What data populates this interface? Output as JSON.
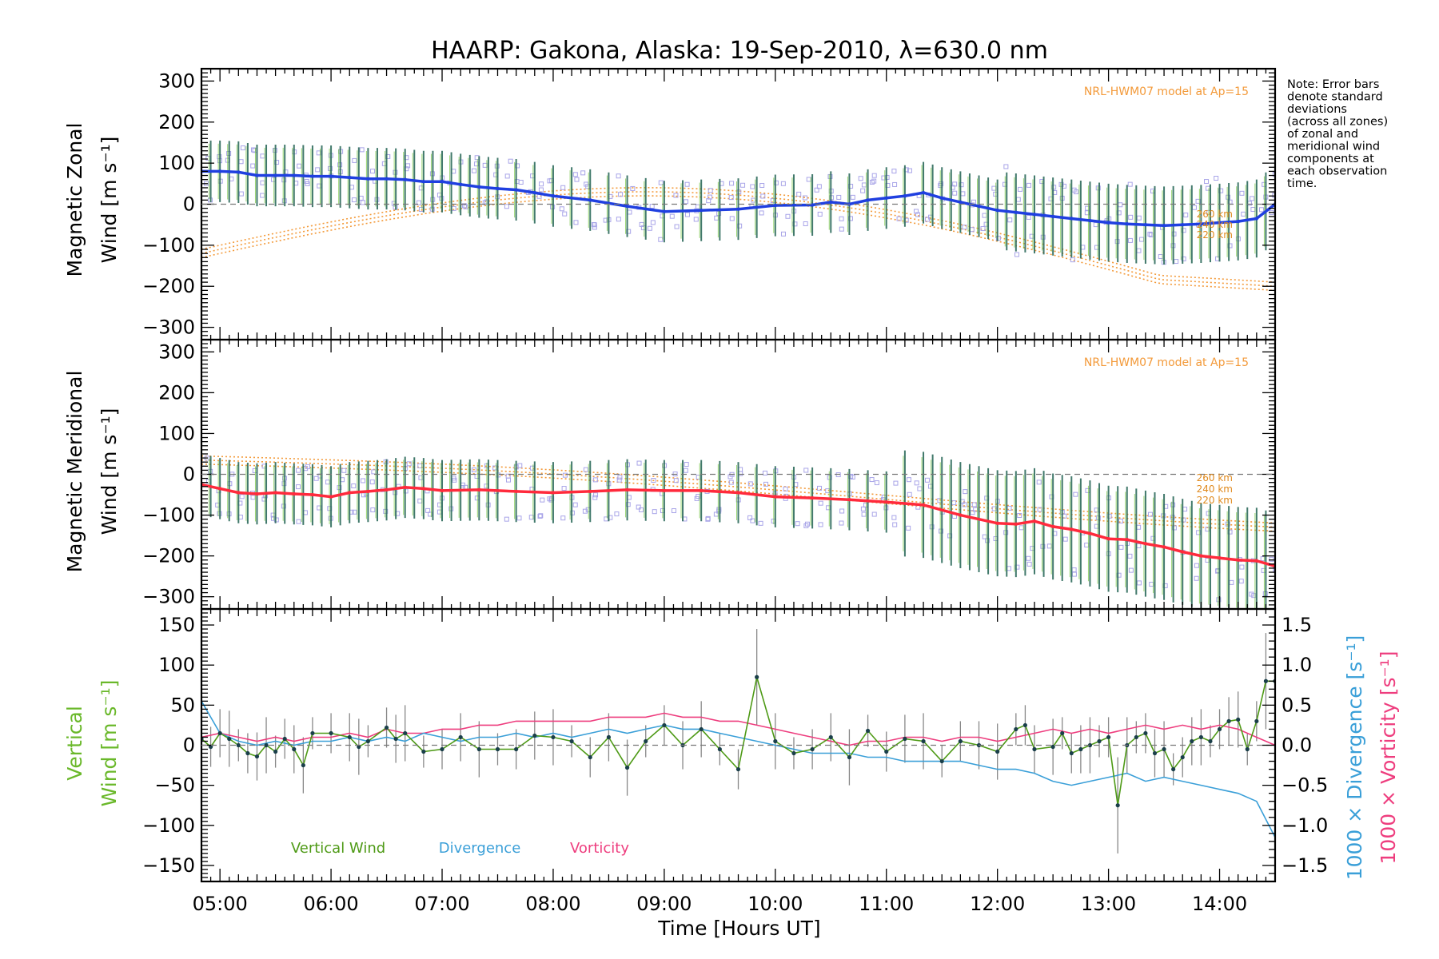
{
  "chart_data": [
    {
      "type": "line",
      "panel": "zonal",
      "title": "HAARP: Gakona,  Alaska: 19-Sep-2010, λ=630.0 nm",
      "ylabel_line1": "Magnetic Zonal",
      "ylabel_line2": "Wind [m s⁻¹]",
      "xlim": [
        "04:50",
        "14:30"
      ],
      "ylim": [
        -330,
        330
      ],
      "yticks": [
        -300,
        -200,
        -100,
        0,
        100,
        200,
        300
      ],
      "grid": false,
      "model_label": "NRL-HWM07 model at Ap=15",
      "model_altitude_labels": [
        "260 km",
        "240 km",
        "220 km"
      ],
      "series": [
        {
          "color": "#1f3fe0",
          "x": [
            "04:50",
            "05:00",
            "05:10",
            "05:20",
            "05:30",
            "05:40",
            "05:50",
            "06:00",
            "06:10",
            "06:20",
            "06:30",
            "06:40",
            "06:50",
            "07:00",
            "07:10",
            "07:20",
            "07:30",
            "07:40",
            "07:50",
            "08:00",
            "08:20",
            "08:40",
            "09:00",
            "09:20",
            "09:40",
            "10:00",
            "10:20",
            "10:30",
            "10:40",
            "10:50",
            "11:00",
            "11:10",
            "11:20",
            "11:30",
            "11:40",
            "11:50",
            "12:00",
            "12:10",
            "12:20",
            "12:30",
            "12:40",
            "12:50",
            "13:00",
            "13:10",
            "13:20",
            "13:30",
            "13:40",
            "13:50",
            "14:00",
            "14:10",
            "14:20",
            "14:30"
          ],
          "values": [
            80,
            80,
            78,
            70,
            70,
            70,
            68,
            68,
            65,
            62,
            62,
            60,
            55,
            55,
            48,
            42,
            38,
            35,
            28,
            20,
            10,
            -5,
            -18,
            -15,
            -12,
            -3,
            -2,
            5,
            0,
            10,
            15,
            20,
            28,
            15,
            5,
            -5,
            -15,
            -20,
            -25,
            -30,
            -35,
            -40,
            -45,
            -48,
            -50,
            -52,
            -50,
            -48,
            -45,
            -42,
            -35,
            0
          ]
        }
      ]
    },
    {
      "type": "line",
      "panel": "meridional",
      "ylabel_line1": "Magnetic Meridional",
      "ylabel_line2": "Wind [m s⁻¹]",
      "xlim": [
        "04:50",
        "14:30"
      ],
      "ylim": [
        -330,
        330
      ],
      "yticks": [
        -300,
        -200,
        -100,
        0,
        100,
        200,
        300
      ],
      "grid": false,
      "model_label": "NRL-HWM07 model at Ap=15",
      "model_altitude_labels": [
        "260 km",
        "240 km",
        "220 km"
      ],
      "series": [
        {
          "color": "#ff2a3c",
          "x": [
            "04:50",
            "05:00",
            "05:10",
            "05:20",
            "05:30",
            "05:40",
            "05:50",
            "06:00",
            "06:10",
            "06:20",
            "06:30",
            "06:40",
            "06:50",
            "07:00",
            "07:20",
            "07:40",
            "08:00",
            "08:20",
            "08:40",
            "09:00",
            "09:20",
            "09:40",
            "10:00",
            "10:20",
            "10:40",
            "11:00",
            "11:20",
            "11:40",
            "12:00",
            "12:10",
            "12:20",
            "12:30",
            "12:40",
            "12:50",
            "13:00",
            "13:10",
            "13:20",
            "13:30",
            "13:40",
            "13:50",
            "14:00",
            "14:10",
            "14:20",
            "14:30"
          ],
          "values": [
            -25,
            -35,
            -45,
            -48,
            -45,
            -48,
            -50,
            -55,
            -45,
            -42,
            -38,
            -32,
            -35,
            -40,
            -38,
            -42,
            -45,
            -42,
            -38,
            -40,
            -40,
            -45,
            -55,
            -58,
            -62,
            -68,
            -75,
            -100,
            -120,
            -122,
            -115,
            -128,
            -135,
            -145,
            -158,
            -160,
            -170,
            -178,
            -190,
            -200,
            -205,
            -210,
            -212,
            -225
          ]
        }
      ]
    },
    {
      "type": "line",
      "panel": "vertical",
      "xlabel": "Time [Hours UT]",
      "xticks": [
        "05:00",
        "06:00",
        "07:00",
        "08:00",
        "09:00",
        "10:00",
        "11:00",
        "12:00",
        "13:00",
        "14:00"
      ],
      "xlim": [
        "04:50",
        "14:30"
      ],
      "ylabel_line1": "Vertical",
      "ylabel_line2": "Wind [m s⁻¹]",
      "ylim": [
        -170,
        170
      ],
      "yticks": [
        -150,
        -100,
        -50,
        0,
        50,
        100,
        150
      ],
      "y2label_div": "1000 × Divergence [s⁻¹]",
      "y2label_vort": "1000 × Vorticity [s⁻¹]",
      "y2lim": [
        -1.7,
        1.7
      ],
      "y2ticks": [
        "-1.5",
        "-1.0",
        "-0.5",
        "0.0",
        "0.5",
        "1.0",
        "1.5"
      ],
      "legend_position": "bottom-left",
      "series": [
        {
          "name": "Vertical Wind",
          "color": "#4e9a16",
          "axis": "left",
          "x": [
            "04:50",
            "04:55",
            "05:00",
            "05:05",
            "05:10",
            "05:15",
            "05:20",
            "05:25",
            "05:30",
            "05:35",
            "05:40",
            "05:45",
            "05:50",
            "06:00",
            "06:10",
            "06:15",
            "06:20",
            "06:30",
            "06:35",
            "06:40",
            "06:50",
            "07:00",
            "07:10",
            "07:20",
            "07:30",
            "07:40",
            "07:50",
            "08:00",
            "08:10",
            "08:20",
            "08:30",
            "08:40",
            "08:50",
            "09:00",
            "09:10",
            "09:20",
            "09:30",
            "09:40",
            "09:50",
            "10:00",
            "10:10",
            "10:20",
            "10:30",
            "10:40",
            "10:50",
            "11:00",
            "11:10",
            "11:20",
            "11:30",
            "11:40",
            "11:50",
            "12:00",
            "12:10",
            "12:15",
            "12:20",
            "12:30",
            "12:35",
            "12:40",
            "12:45",
            "12:50",
            "12:55",
            "13:00",
            "13:05",
            "13:10",
            "13:15",
            "13:20",
            "13:25",
            "13:30",
            "13:35",
            "13:40",
            "13:45",
            "13:50",
            "13:55",
            "14:00",
            "14:05",
            "14:10",
            "14:15",
            "14:20",
            "14:25",
            "14:30"
          ],
          "values": [
            8,
            -2,
            15,
            8,
            0,
            -10,
            -14,
            0,
            -8,
            8,
            -5,
            -25,
            15,
            15,
            10,
            -2,
            5,
            22,
            8,
            15,
            -8,
            -5,
            10,
            -5,
            -5,
            -5,
            12,
            10,
            5,
            -15,
            10,
            -28,
            5,
            25,
            0,
            20,
            -5,
            -30,
            85,
            5,
            -10,
            -5,
            10,
            -15,
            18,
            -8,
            8,
            5,
            -20,
            5,
            0,
            -8,
            20,
            25,
            -5,
            -2,
            15,
            -10,
            -5,
            0,
            5,
            10,
            -75,
            0,
            10,
            15,
            -10,
            -5,
            -30,
            -15,
            5,
            10,
            5,
            20,
            30,
            32,
            -5,
            30,
            80,
            80
          ]
        },
        {
          "name": "Divergence",
          "color": "#3a9fd8",
          "axis": "right",
          "x": [
            "04:50",
            "05:00",
            "05:10",
            "05:20",
            "05:30",
            "05:40",
            "05:50",
            "06:00",
            "06:10",
            "06:20",
            "06:30",
            "06:40",
            "06:50",
            "07:00",
            "07:10",
            "07:20",
            "07:30",
            "07:40",
            "07:50",
            "08:00",
            "08:10",
            "08:20",
            "08:30",
            "08:40",
            "08:50",
            "09:00",
            "09:10",
            "09:20",
            "09:30",
            "09:40",
            "09:50",
            "10:00",
            "10:10",
            "10:20",
            "10:30",
            "10:40",
            "10:50",
            "11:00",
            "11:10",
            "11:20",
            "11:30",
            "11:40",
            "11:50",
            "12:00",
            "12:10",
            "12:20",
            "12:30",
            "12:40",
            "12:50",
            "13:00",
            "13:10",
            "13:20",
            "13:30",
            "13:40",
            "13:50",
            "14:00",
            "14:10",
            "14:20",
            "14:30"
          ],
          "values": [
            0.55,
            0.15,
            0.05,
            0.0,
            0.05,
            0.0,
            0.05,
            0.05,
            0.1,
            0.05,
            0.1,
            0.05,
            0.15,
            0.1,
            0.05,
            0.1,
            0.1,
            0.15,
            0.1,
            0.15,
            0.1,
            0.15,
            0.2,
            0.15,
            0.2,
            0.25,
            0.2,
            0.2,
            0.15,
            0.1,
            0.05,
            0.0,
            -0.05,
            -0.1,
            -0.1,
            -0.1,
            -0.15,
            -0.15,
            -0.2,
            -0.2,
            -0.2,
            -0.2,
            -0.25,
            -0.3,
            -0.3,
            -0.35,
            -0.45,
            -0.5,
            -0.45,
            -0.4,
            -0.35,
            -0.45,
            -0.4,
            -0.45,
            -0.5,
            -0.55,
            -0.6,
            -0.7,
            -1.15
          ]
        },
        {
          "name": "Vorticity",
          "color": "#ee3d7e",
          "axis": "right",
          "x": [
            "04:50",
            "05:00",
            "05:10",
            "05:20",
            "05:30",
            "05:40",
            "05:50",
            "06:00",
            "06:10",
            "06:20",
            "06:30",
            "06:40",
            "06:50",
            "07:00",
            "07:10",
            "07:20",
            "07:30",
            "07:40",
            "07:50",
            "08:00",
            "08:10",
            "08:20",
            "08:30",
            "08:40",
            "08:50",
            "09:00",
            "09:10",
            "09:20",
            "09:30",
            "09:40",
            "09:50",
            "10:00",
            "10:10",
            "10:20",
            "10:30",
            "10:40",
            "10:50",
            "11:00",
            "11:10",
            "11:20",
            "11:30",
            "11:40",
            "11:50",
            "12:00",
            "12:10",
            "12:20",
            "12:30",
            "12:40",
            "12:50",
            "13:00",
            "13:10",
            "13:20",
            "13:30",
            "13:40",
            "13:50",
            "14:00",
            "14:10",
            "14:20",
            "14:30"
          ],
          "values": [
            0.1,
            0.15,
            0.1,
            0.05,
            0.1,
            0.05,
            0.1,
            0.1,
            0.15,
            0.1,
            0.2,
            0.15,
            0.15,
            0.2,
            0.2,
            0.25,
            0.25,
            0.3,
            0.3,
            0.3,
            0.3,
            0.3,
            0.35,
            0.35,
            0.35,
            0.4,
            0.35,
            0.35,
            0.3,
            0.3,
            0.25,
            0.2,
            0.15,
            0.1,
            0.05,
            0.0,
            0.05,
            0.05,
            0.1,
            0.1,
            0.05,
            0.1,
            0.1,
            0.05,
            0.1,
            0.15,
            0.2,
            0.15,
            0.2,
            0.15,
            0.2,
            0.25,
            0.2,
            0.25,
            0.2,
            0.25,
            0.2,
            0.1,
            0.0
          ]
        }
      ]
    }
  ],
  "note": [
    "Note: Error bars",
    "denote standard",
    "deviations",
    "(across all zones)",
    "of zonal and",
    "meridional wind",
    "components at",
    "each observation",
    "time."
  ]
}
